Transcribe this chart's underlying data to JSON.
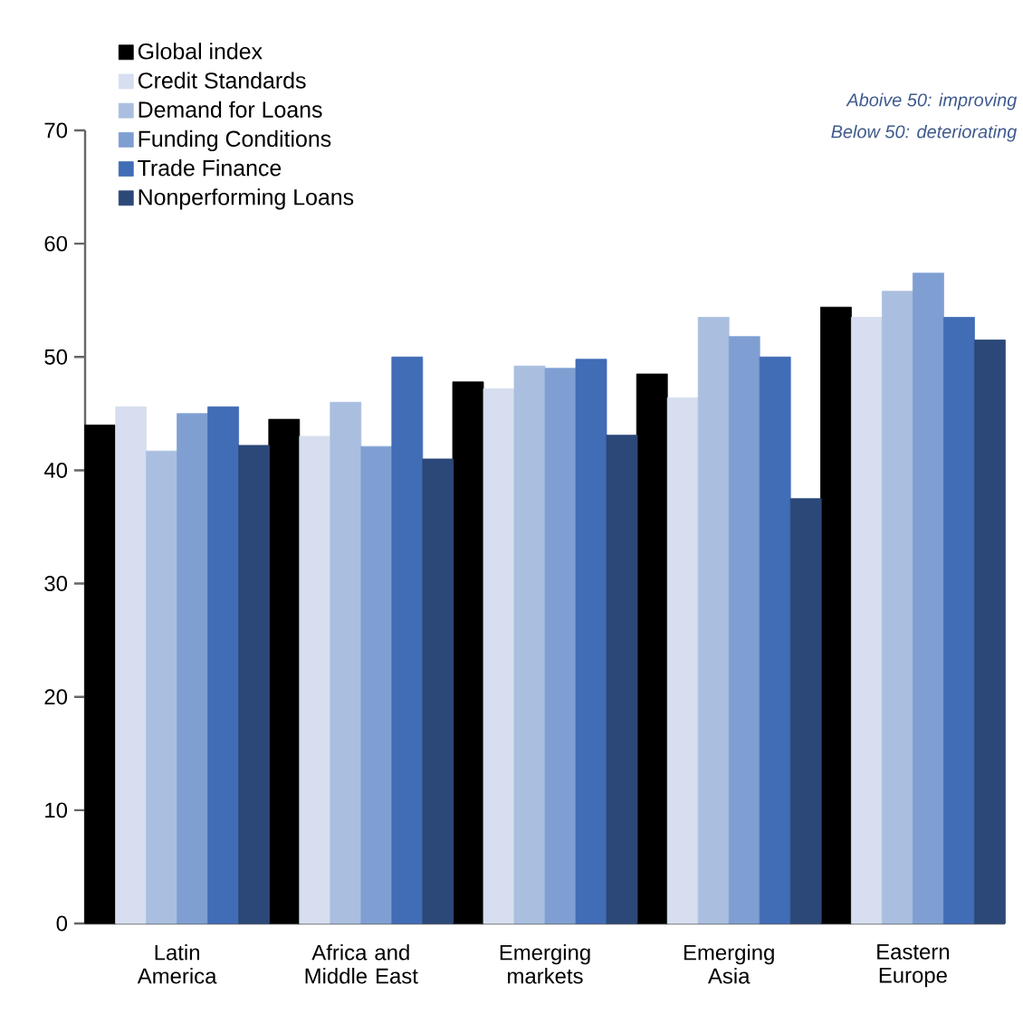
{
  "chart_data": {
    "type": "bar",
    "categories": [
      "Latin America",
      "Africa and Middle East",
      "Emerging markets",
      "Emerging Asia",
      "Eastern Europe"
    ],
    "series": [
      {
        "name": "Global index",
        "color": "#000000",
        "values": [
          44,
          44.5,
          47.8,
          48.5,
          54.4
        ]
      },
      {
        "name": "Credit Standards",
        "color": "#d6deef",
        "values": [
          45.6,
          43,
          47.2,
          46.4,
          53.5
        ]
      },
      {
        "name": "Demand for Loans",
        "color": "#aabfe0",
        "values": [
          41.7,
          46,
          49.2,
          53.5,
          55.8
        ]
      },
      {
        "name": "Funding Conditions",
        "color": "#7f9fd3",
        "values": [
          45,
          42.1,
          49,
          51.8,
          57.4
        ]
      },
      {
        "name": "Trade Finance",
        "color": "#416cb6",
        "values": [
          45.6,
          50,
          49.8,
          50,
          53.5
        ]
      },
      {
        "name": "Nonperforming Loans",
        "color": "#2b4878",
        "values": [
          42.2,
          41,
          43.1,
          37.5,
          51.5
        ]
      }
    ],
    "ylim": [
      0,
      70
    ],
    "yticks": [
      0,
      10,
      20,
      30,
      40,
      50,
      60,
      70
    ],
    "legend": "top left",
    "grid": false,
    "annotations": [
      "Aboive 50: improving",
      "Below 50: deteriorating"
    ]
  }
}
